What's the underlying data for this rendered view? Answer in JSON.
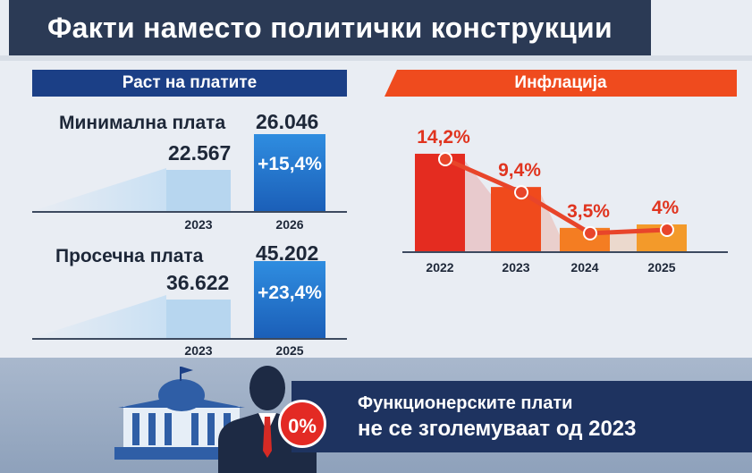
{
  "title": "Факти наместо политички конструкции",
  "wages": {
    "header": "Раст на платите",
    "minimum": {
      "label": "Минимална плата",
      "before_value": "22.567",
      "after_value": "26.046",
      "change": "+15,4%",
      "before_year": "2023",
      "after_year": "2026",
      "before_num": 22567,
      "after_num": 26046
    },
    "average": {
      "label": "Просечна плата",
      "before_value": "36.622",
      "after_value": "45.202",
      "change": "+23,4%",
      "before_year": "2023",
      "after_year": "2025",
      "before_num": 36622,
      "after_num": 45202
    }
  },
  "inflation": {
    "header": "Инфлација"
  },
  "chart_data": {
    "type": "bar",
    "title": "Инфлација",
    "categories": [
      "2022",
      "2023",
      "2024",
      "2025"
    ],
    "values": [
      14.2,
      9.4,
      3.5,
      4.0
    ],
    "labels": [
      "14,2%",
      "9,4%",
      "3,5%",
      "4%"
    ],
    "unit": "%",
    "ylim": [
      0,
      16
    ],
    "grid": false,
    "overlay_line": true,
    "colors": [
      "#e42c20",
      "#f04a1c",
      "#f47d22",
      "#f39a2a"
    ]
  },
  "footer": {
    "badge": "0%",
    "line1": "Функционерските плати",
    "line2": "не се зголемуваат од 2023"
  },
  "colors": {
    "navy": "#1b3f86",
    "orange": "#ef4b1e",
    "dark_blue": "#1e3360",
    "red_badge": "#e32a24"
  }
}
